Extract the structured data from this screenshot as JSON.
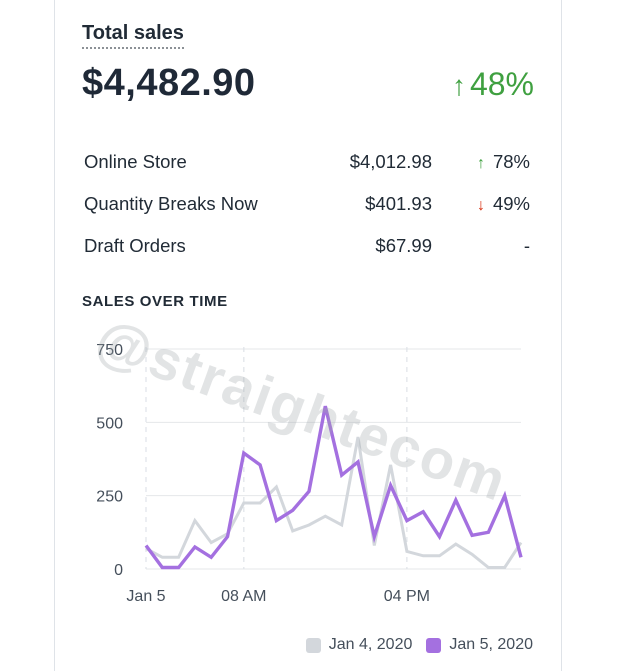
{
  "header": {
    "title": "Total sales",
    "total_value": "$4,482.90",
    "total_change": "48%",
    "total_change_direction": "up"
  },
  "breakdown": [
    {
      "name": "Online Store",
      "value": "$4,012.98",
      "change": "78%",
      "direction": "up",
      "arrow": "↑"
    },
    {
      "name": "Quantity Breaks Now",
      "value": "$401.93",
      "change": "49%",
      "direction": "down",
      "arrow": "↓"
    },
    {
      "name": "Draft Orders",
      "value": "$67.99",
      "change": "-",
      "direction": "none",
      "arrow": ""
    }
  ],
  "section_title": "SALES OVER TIME",
  "watermark": "@straightecom",
  "colors": {
    "up": "#3fa040",
    "down": "#d72c0d",
    "series_current": "#a470e0",
    "series_previous": "#d3d7dc"
  },
  "chart_data": {
    "type": "line",
    "title": "SALES OVER TIME",
    "ylim": [
      0,
      750
    ],
    "y_ticks": [
      0,
      250,
      500,
      750
    ],
    "x_tick_labels": [
      "Jan 5",
      "08 AM",
      "04 PM"
    ],
    "x": [
      0,
      1,
      2,
      3,
      4,
      5,
      6,
      7,
      8,
      9,
      10,
      11,
      12,
      13,
      14,
      15,
      16,
      17,
      18,
      19,
      20,
      21,
      22,
      23
    ],
    "grid": true,
    "legend": "bottom-right",
    "series": [
      {
        "name": "Jan 4, 2020",
        "color": "#d3d7dc",
        "values": [
          70,
          40,
          40,
          165,
          90,
          120,
          225,
          225,
          280,
          130,
          150,
          180,
          150,
          450,
          80,
          355,
          60,
          45,
          45,
          85,
          50,
          5,
          5,
          90
        ]
      },
      {
        "name": "Jan 5, 2020",
        "color": "#a470e0",
        "values": [
          80,
          5,
          5,
          75,
          40,
          110,
          395,
          355,
          165,
          200,
          265,
          555,
          320,
          365,
          110,
          285,
          165,
          195,
          110,
          235,
          115,
          125,
          250,
          40
        ]
      }
    ]
  }
}
